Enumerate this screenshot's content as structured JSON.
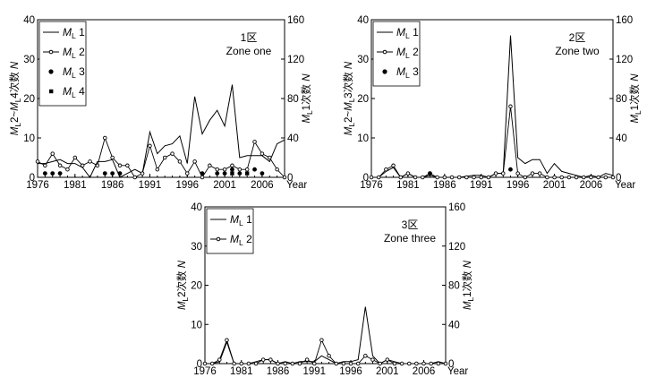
{
  "chart_data": [
    {
      "type": "line",
      "annotation": [
        "1区",
        "Zone one"
      ],
      "xlabel": "Year",
      "ylabel_left": "ML2~ML4次数 N",
      "ylabel_right": "ML1次数 N",
      "xlim": [
        1976,
        2009
      ],
      "ylim_left": [
        0,
        40
      ],
      "ylim_right": [
        0,
        160
      ],
      "xticks": [
        1976,
        1981,
        1986,
        1991,
        1996,
        2001,
        2006
      ],
      "yticks_left": [
        0,
        10,
        20,
        30,
        40
      ],
      "yticks_right": [
        0,
        40,
        80,
        120,
        160
      ],
      "legend": {
        "position": "top-left"
      },
      "series": [
        {
          "name": "ML1",
          "style": "line",
          "axis": "right",
          "x": [
            1976,
            1977,
            1978,
            1979,
            1980,
            1981,
            1982,
            1983,
            1984,
            1985,
            1986,
            1987,
            1988,
            1989,
            1990,
            1991,
            1992,
            1993,
            1994,
            1995,
            1996,
            1997,
            1998,
            1999,
            2000,
            2001,
            2002,
            2003,
            2004,
            2005,
            2006,
            2007,
            2008,
            2009
          ],
          "y": [
            14,
            14,
            16,
            18,
            14,
            14,
            10,
            0,
            16,
            16,
            18,
            0,
            4,
            8,
            4,
            46,
            24,
            32,
            34,
            42,
            14,
            82,
            44,
            58,
            68,
            52,
            94,
            20,
            22,
            22,
            22,
            16,
            34,
            38
          ]
        },
        {
          "name": "ML2",
          "style": "line-open-circle",
          "axis": "left",
          "x": [
            1976,
            1977,
            1978,
            1979,
            1980,
            1981,
            1982,
            1983,
            1984,
            1985,
            1986,
            1987,
            1988,
            1989,
            1990,
            1991,
            1992,
            1993,
            1994,
            1995,
            1996,
            1997,
            1998,
            1999,
            2000,
            2001,
            2002,
            2003,
            2004,
            2005,
            2006,
            2007,
            2008,
            2009
          ],
          "y": [
            4,
            3,
            6,
            3,
            2,
            5,
            3,
            4,
            3,
            10,
            5,
            3,
            3,
            0,
            1,
            8,
            2,
            5,
            6,
            4,
            1,
            4,
            0,
            3,
            2,
            2,
            3,
            2,
            2,
            9,
            6,
            5,
            2,
            0
          ]
        },
        {
          "name": "ML3",
          "style": "dot",
          "axis": "left",
          "x": [
            1977,
            1978,
            1979,
            1985,
            1986,
            1987,
            1998,
            2000,
            2001,
            2002,
            2003,
            2005,
            2006
          ],
          "y": [
            1,
            1,
            1,
            1,
            1,
            1,
            1,
            1,
            1,
            2,
            1,
            2,
            1
          ]
        },
        {
          "name": "ML4",
          "style": "square",
          "axis": "left",
          "x": [
            2002,
            2004
          ],
          "y": [
            1,
            1
          ]
        }
      ]
    },
    {
      "type": "line",
      "annotation": [
        "2区",
        "Zone two"
      ],
      "xlabel": "Year",
      "ylabel_left": "ML2~ML3次数 N",
      "ylabel_right": "ML1次数 N",
      "xlim": [
        1976,
        2009
      ],
      "ylim_left": [
        0,
        40
      ],
      "ylim_right": [
        0,
        160
      ],
      "xticks": [
        1976,
        1981,
        1986,
        1991,
        1996,
        2001,
        2006
      ],
      "yticks_left": [
        0,
        10,
        20,
        30,
        40
      ],
      "yticks_right": [
        0,
        40,
        80,
        120,
        160
      ],
      "legend": {
        "position": "top-left"
      },
      "series": [
        {
          "name": "ML1",
          "style": "line",
          "axis": "right",
          "x": [
            1976,
            1977,
            1978,
            1979,
            1980,
            1981,
            1982,
            1983,
            1984,
            1985,
            1986,
            1987,
            1988,
            1989,
            1990,
            1991,
            1992,
            1993,
            1994,
            1995,
            1996,
            1997,
            1998,
            1999,
            2000,
            2001,
            2002,
            2003,
            2004,
            2005,
            2006,
            2007,
            2008,
            2009
          ],
          "y": [
            0,
            0,
            6,
            10,
            0,
            4,
            0,
            0,
            2,
            0,
            0,
            0,
            0,
            1,
            2,
            2,
            0,
            4,
            4,
            144,
            20,
            14,
            18,
            18,
            4,
            14,
            6,
            4,
            2,
            0,
            2,
            0,
            4,
            2
          ]
        },
        {
          "name": "ML2",
          "style": "line-open-circle",
          "axis": "left",
          "x": [
            1976,
            1977,
            1978,
            1979,
            1980,
            1981,
            1982,
            1983,
            1984,
            1985,
            1986,
            1987,
            1988,
            1989,
            1990,
            1991,
            1992,
            1993,
            1994,
            1995,
            1996,
            1997,
            1998,
            1999,
            2000,
            2001,
            2002,
            2003,
            2004,
            2005,
            2006,
            2007,
            2008,
            2009
          ],
          "y": [
            0,
            0,
            2,
            3,
            0,
            1,
            0,
            0,
            1,
            0,
            0,
            0,
            0,
            0,
            0,
            0,
            0,
            1,
            1,
            18,
            1,
            0,
            1,
            1,
            0,
            0,
            0,
            0,
            0,
            0,
            0,
            0,
            0,
            0
          ]
        },
        {
          "name": "ML3",
          "style": "dot",
          "axis": "left",
          "x": [
            1984,
            1995
          ],
          "y": [
            1,
            2
          ]
        }
      ]
    },
    {
      "type": "line",
      "annotation": [
        "3区",
        "Zone three"
      ],
      "xlabel": "Year",
      "ylabel_left": "ML2次数 N",
      "ylabel_right": "ML1次数 N",
      "xlim": [
        1976,
        2009
      ],
      "ylim_left": [
        0,
        40
      ],
      "ylim_right": [
        0,
        160
      ],
      "xticks": [
        1976,
        1981,
        1986,
        1991,
        1996,
        2001,
        2006
      ],
      "yticks_left": [
        0,
        10,
        20,
        30,
        40
      ],
      "yticks_right": [
        0,
        40,
        80,
        120,
        160
      ],
      "legend": {
        "position": "top-left"
      },
      "series": [
        {
          "name": "ML1",
          "style": "line",
          "axis": "right",
          "x": [
            1976,
            1977,
            1978,
            1979,
            1980,
            1981,
            1982,
            1983,
            1984,
            1985,
            1986,
            1987,
            1988,
            1989,
            1990,
            1991,
            1992,
            1993,
            1994,
            1995,
            1996,
            1997,
            1998,
            1999,
            2000,
            2001,
            2002,
            2003,
            2004,
            2005,
            2006,
            2007,
            2008,
            2009
          ],
          "y": [
            0,
            0,
            2,
            22,
            0,
            0,
            0,
            2,
            4,
            4,
            0,
            2,
            0,
            2,
            2,
            2,
            8,
            4,
            0,
            2,
            2,
            4,
            58,
            8,
            0,
            4,
            2,
            0,
            0,
            0,
            0,
            0,
            2,
            0
          ]
        },
        {
          "name": "ML2",
          "style": "line-open-circle",
          "axis": "left",
          "x": [
            1976,
            1977,
            1978,
            1979,
            1980,
            1981,
            1982,
            1983,
            1984,
            1985,
            1986,
            1987,
            1988,
            1989,
            1990,
            1991,
            1992,
            1993,
            1994,
            1995,
            1996,
            1997,
            1998,
            1999,
            2000,
            2001,
            2002,
            2003,
            2004,
            2005,
            2006,
            2007,
            2008,
            2009
          ],
          "y": [
            0,
            0,
            1,
            6,
            0,
            0,
            0,
            0,
            1,
            1,
            0,
            0,
            0,
            0,
            1,
            0,
            6,
            2,
            0,
            0,
            0,
            0,
            2,
            1,
            0,
            1,
            0,
            0,
            0,
            0,
            0,
            0,
            0,
            0
          ]
        }
      ]
    }
  ]
}
